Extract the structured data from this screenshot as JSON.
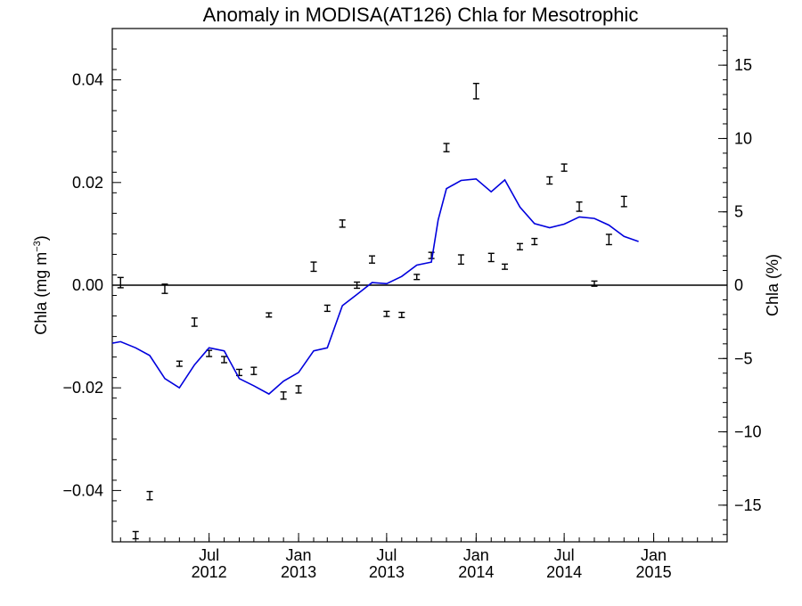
{
  "chart_data": {
    "type": "scatter",
    "title": "Anomaly in MODISA(AT126) Chla for Mesotrophic",
    "ylabel_left_main": "Chla (mg m",
    "ylabel_left_sup": "−3",
    "ylabel_left_close": ")",
    "ylabel_right": "Chla (%)",
    "x_ticks": [
      {
        "month": "Jul",
        "year": "2012",
        "date": "2012-07"
      },
      {
        "month": "Jan",
        "year": "2013",
        "date": "2013-01"
      },
      {
        "month": "Jul",
        "year": "2013",
        "date": "2013-07"
      },
      {
        "month": "Jan",
        "year": "2014",
        "date": "2014-01"
      },
      {
        "month": "Jul",
        "year": "2014",
        "date": "2014-07"
      },
      {
        "month": "Jan",
        "year": "2015",
        "date": "2015-01"
      }
    ],
    "xlim": [
      "2011-12-15",
      "2015-06-01"
    ],
    "ylim_left": [
      -0.05,
      0.05
    ],
    "ylim_right": [
      -17.5,
      17.5
    ],
    "y_ticks_left": [
      "0.04",
      "0.02",
      "0.00",
      "−0.02",
      "−0.04"
    ],
    "y_ticks_left_values": [
      0.04,
      0.02,
      0.0,
      -0.02,
      -0.04
    ],
    "y_ticks_right": [
      "15",
      "10",
      "5",
      "0",
      "−5",
      "−10",
      "−15"
    ],
    "y_ticks_right_values": [
      15,
      10,
      5,
      0,
      -5,
      -10,
      -15
    ],
    "zero_line": 0,
    "series": [
      {
        "kind": "points-with-error",
        "axis": "left",
        "color": "#000000",
        "points": [
          {
            "date": "2012-01-01",
            "y": 0.0005,
            "err": 0.001
          },
          {
            "date": "2012-02-01",
            "y": -0.0487,
            "err": 0.0007
          },
          {
            "date": "2012-03-01",
            "y": -0.041,
            "err": 0.0008
          },
          {
            "date": "2012-04-01",
            "y": -0.0007,
            "err": 0.0009
          },
          {
            "date": "2012-05-01",
            "y": -0.0153,
            "err": 0.0005
          },
          {
            "date": "2012-06-01",
            "y": -0.0072,
            "err": 0.0008
          },
          {
            "date": "2012-07-01",
            "y": -0.0133,
            "err": 0.0006
          },
          {
            "date": "2012-08-01",
            "y": -0.0145,
            "err": 0.0006
          },
          {
            "date": "2012-09-01",
            "y": -0.017,
            "err": 0.0006
          },
          {
            "date": "2012-10-01",
            "y": -0.0167,
            "err": 0.0007
          },
          {
            "date": "2012-11-01",
            "y": -0.0058,
            "err": 0.0004
          },
          {
            "date": "2012-12-01",
            "y": -0.0215,
            "err": 0.0007
          },
          {
            "date": "2013-01-01",
            "y": -0.0203,
            "err": 0.0007
          },
          {
            "date": "2013-02-01",
            "y": 0.0036,
            "err": 0.0009
          },
          {
            "date": "2013-03-01",
            "y": -0.0045,
            "err": 0.0006
          },
          {
            "date": "2013-04-01",
            "y": 0.012,
            "err": 0.0007
          },
          {
            "date": "2013-05-01",
            "y": 0.0,
            "err": 0.0006
          },
          {
            "date": "2013-06-01",
            "y": 0.005,
            "err": 0.0007
          },
          {
            "date": "2013-07-01",
            "y": -0.0056,
            "err": 0.0005
          },
          {
            "date": "2013-08-01",
            "y": -0.0058,
            "err": 0.0005
          },
          {
            "date": "2013-09-01",
            "y": 0.0016,
            "err": 0.0005
          },
          {
            "date": "2013-10-01",
            "y": 0.0058,
            "err": 0.0006
          },
          {
            "date": "2013-11-01",
            "y": 0.0268,
            "err": 0.0008
          },
          {
            "date": "2013-12-01",
            "y": 0.005,
            "err": 0.0009
          },
          {
            "date": "2014-01-01",
            "y": 0.0378,
            "err": 0.0015
          },
          {
            "date": "2014-02-01",
            "y": 0.0054,
            "err": 0.0008
          },
          {
            "date": "2014-03-01",
            "y": 0.0036,
            "err": 0.0005
          },
          {
            "date": "2014-04-01",
            "y": 0.0075,
            "err": 0.0006
          },
          {
            "date": "2014-05-01",
            "y": 0.0085,
            "err": 0.0006
          },
          {
            "date": "2014-06-01",
            "y": 0.0204,
            "err": 0.0007
          },
          {
            "date": "2014-07-01",
            "y": 0.0229,
            "err": 0.0007
          },
          {
            "date": "2014-08-01",
            "y": 0.0153,
            "err": 0.0009
          },
          {
            "date": "2014-09-01",
            "y": 0.0003,
            "err": 0.0005
          },
          {
            "date": "2014-10-01",
            "y": 0.0089,
            "err": 0.001
          },
          {
            "date": "2014-11-01",
            "y": 0.0163,
            "err": 0.001
          }
        ]
      },
      {
        "kind": "line",
        "axis": "left",
        "color": "#0000dd",
        "points": [
          {
            "date": "2011-12-15",
            "y": -0.0113
          },
          {
            "date": "2012-01-01",
            "y": -0.011
          },
          {
            "date": "2012-02-01",
            "y": -0.0122
          },
          {
            "date": "2012-03-01",
            "y": -0.0137
          },
          {
            "date": "2012-04-01",
            "y": -0.0182
          },
          {
            "date": "2012-05-01",
            "y": -0.02
          },
          {
            "date": "2012-06-01",
            "y": -0.0155
          },
          {
            "date": "2012-07-01",
            "y": -0.0122
          },
          {
            "date": "2012-08-01",
            "y": -0.0128
          },
          {
            "date": "2012-09-01",
            "y": -0.0182
          },
          {
            "date": "2012-10-01",
            "y": -0.0196
          },
          {
            "date": "2012-11-01",
            "y": -0.0212
          },
          {
            "date": "2012-12-01",
            "y": -0.0187
          },
          {
            "date": "2013-01-01",
            "y": -0.017
          },
          {
            "date": "2013-02-01",
            "y": -0.0128
          },
          {
            "date": "2013-03-01",
            "y": -0.0122
          },
          {
            "date": "2013-04-01",
            "y": -0.004
          },
          {
            "date": "2013-05-01",
            "y": -0.0018
          },
          {
            "date": "2013-06-01",
            "y": 0.0005
          },
          {
            "date": "2013-07-01",
            "y": 0.0003
          },
          {
            "date": "2013-08-01",
            "y": 0.0017
          },
          {
            "date": "2013-09-01",
            "y": 0.0039
          },
          {
            "date": "2013-10-01",
            "y": 0.0045
          },
          {
            "date": "2013-10-15",
            "y": 0.0127
          },
          {
            "date": "2013-11-01",
            "y": 0.0188
          },
          {
            "date": "2013-12-01",
            "y": 0.0204
          },
          {
            "date": "2014-01-01",
            "y": 0.0207
          },
          {
            "date": "2014-02-01",
            "y": 0.0182
          },
          {
            "date": "2014-03-01",
            "y": 0.0205
          },
          {
            "date": "2014-04-01",
            "y": 0.0152
          },
          {
            "date": "2014-05-01",
            "y": 0.012
          },
          {
            "date": "2014-06-01",
            "y": 0.0112
          },
          {
            "date": "2014-07-01",
            "y": 0.0119
          },
          {
            "date": "2014-08-01",
            "y": 0.0133
          },
          {
            "date": "2014-09-01",
            "y": 0.013
          },
          {
            "date": "2014-10-01",
            "y": 0.0117
          },
          {
            "date": "2014-11-01",
            "y": 0.0095
          },
          {
            "date": "2014-12-01",
            "y": 0.0085
          }
        ]
      }
    ]
  }
}
